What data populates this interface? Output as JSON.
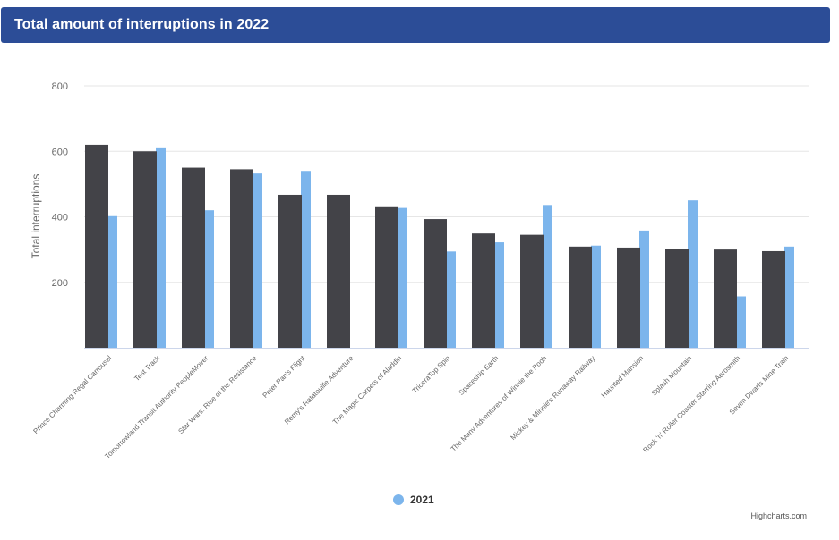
{
  "header": {
    "title": "Total amount of interruptions in 2022"
  },
  "colors": {
    "header_bg": "#2c4d97",
    "series_2022": "#434348",
    "series_2021": "#7cb5ec",
    "grid": "#e6e6e6"
  },
  "legend": {
    "label": "2021"
  },
  "credits": "Highcharts.com",
  "chart_data": {
    "type": "bar",
    "title": "Total amount of interruptions in 2022",
    "xlabel": "",
    "ylabel": "Total interruptions",
    "ylim": [
      0,
      800
    ],
    "yticks": [
      200,
      400,
      600,
      800
    ],
    "grid": true,
    "legend_position": "bottom",
    "categories": [
      "Prince Charming Regal Carrousel",
      "Test Track",
      "Tomorrowland Transit Authority PeopleMover",
      "Star Wars: Rise of the Resistance",
      "Peter Pan's Flight",
      "Remy's Ratatouille Adventure",
      "The Magic Carpets of Aladdin",
      "TriceraTop Spin",
      "Spaceship Earth",
      "The Many Adventures of Winnie the Pooh",
      "Mickey & Minnie's Runaway Railway",
      "Haunted Mansion",
      "Splash Mountain",
      "Rock 'n' Roller Coaster Starring Aerosmith",
      "Seven Dwarfs Mine Train"
    ],
    "series": [
      {
        "values": [
          620,
          600,
          550,
          545,
          467,
          467,
          432,
          393,
          349,
          345,
          309,
          306,
          303,
          300,
          295
        ]
      },
      {
        "name": "2021",
        "values": [
          402,
          612,
          420,
          532,
          540,
          null,
          427,
          294,
          322,
          436,
          312,
          358,
          450,
          157,
          309
        ]
      }
    ]
  }
}
